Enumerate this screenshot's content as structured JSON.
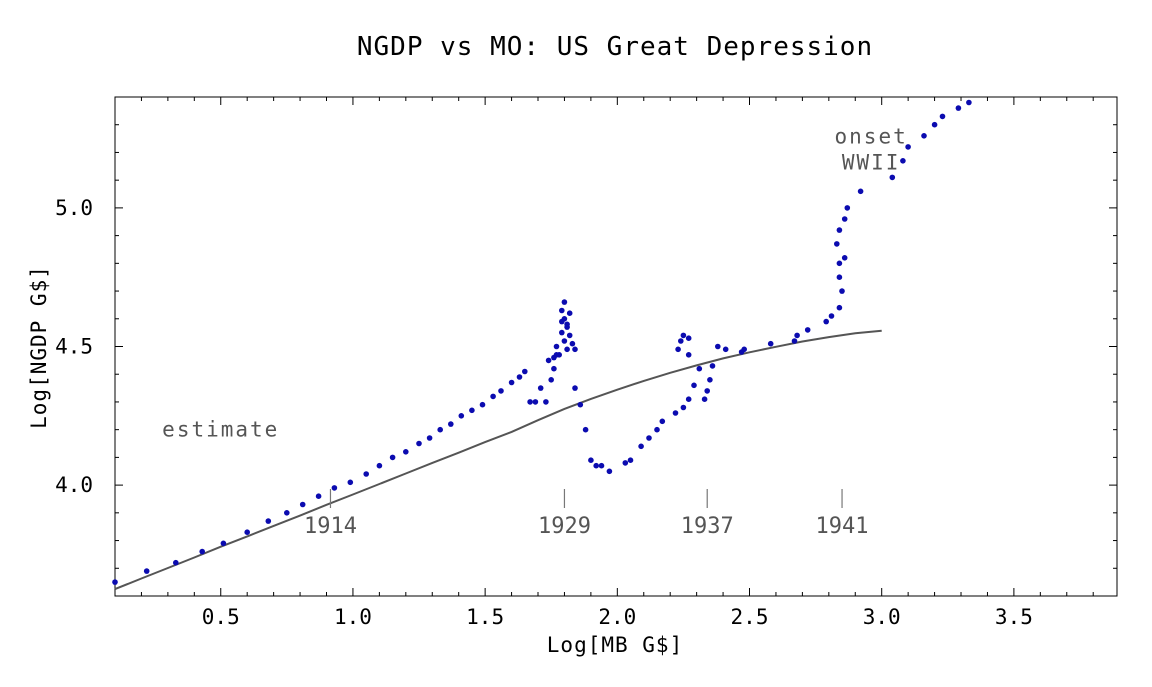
{
  "chart_data": {
    "type": "scatter",
    "title": "NGDP vs MO: US Great Depression",
    "xlabel": "Log[MB G$]",
    "ylabel": "Log[NGDP G$]",
    "xlim": [
      0.1,
      3.89
    ],
    "ylim": [
      3.6,
      5.4
    ],
    "xticks": [
      0.5,
      1.0,
      1.5,
      2.0,
      2.5,
      3.0,
      3.5
    ],
    "yticks": [
      4.0,
      4.5,
      5.0
    ],
    "xtick_labels": [
      "0.5",
      "1.0",
      "1.5",
      "2.0",
      "2.5",
      "3.0",
      "3.5"
    ],
    "ytick_labels": [
      "4.0",
      "4.5",
      "5.0"
    ],
    "grid": false,
    "series": [
      {
        "values": [
          [
            0.1,
            3.65
          ],
          [
            0.22,
            3.69
          ],
          [
            0.33,
            3.72
          ],
          [
            0.43,
            3.76
          ],
          [
            0.51,
            3.79
          ],
          [
            0.6,
            3.83
          ],
          [
            0.68,
            3.87
          ],
          [
            0.75,
            3.9
          ],
          [
            0.81,
            3.93
          ],
          [
            0.87,
            3.96
          ],
          [
            0.93,
            3.99
          ],
          [
            0.99,
            4.01
          ],
          [
            1.05,
            4.04
          ],
          [
            1.1,
            4.07
          ],
          [
            1.15,
            4.1
          ],
          [
            1.2,
            4.12
          ],
          [
            1.25,
            4.15
          ],
          [
            1.29,
            4.17
          ],
          [
            1.33,
            4.2
          ],
          [
            1.37,
            4.22
          ],
          [
            1.41,
            4.25
          ],
          [
            1.45,
            4.27
          ],
          [
            1.49,
            4.29
          ],
          [
            1.53,
            4.32
          ],
          [
            1.56,
            4.34
          ],
          [
            1.6,
            4.37
          ],
          [
            1.63,
            4.39
          ],
          [
            1.65,
            4.41
          ],
          [
            1.67,
            4.3
          ],
          [
            1.69,
            4.3
          ],
          [
            1.71,
            4.35
          ],
          [
            1.73,
            4.3
          ],
          [
            1.75,
            4.38
          ],
          [
            1.74,
            4.45
          ],
          [
            1.76,
            4.42
          ],
          [
            1.76,
            4.46
          ],
          [
            1.77,
            4.47
          ],
          [
            1.77,
            4.5
          ],
          [
            1.78,
            4.47
          ],
          [
            1.79,
            4.55
          ],
          [
            1.79,
            4.59
          ],
          [
            1.79,
            4.63
          ],
          [
            1.8,
            4.66
          ],
          [
            1.8,
            4.6
          ],
          [
            1.81,
            4.57
          ],
          [
            1.8,
            4.52
          ],
          [
            1.81,
            4.49
          ],
          [
            1.82,
            4.54
          ],
          [
            1.81,
            4.58
          ],
          [
            1.82,
            4.62
          ],
          [
            1.83,
            4.51
          ],
          [
            1.84,
            4.49
          ],
          [
            1.84,
            4.35
          ],
          [
            1.86,
            4.29
          ],
          [
            1.88,
            4.2
          ],
          [
            1.9,
            4.09
          ],
          [
            1.92,
            4.07
          ],
          [
            1.94,
            4.07
          ],
          [
            1.97,
            4.05
          ],
          [
            2.03,
            4.08
          ],
          [
            2.05,
            4.09
          ],
          [
            2.09,
            4.14
          ],
          [
            2.12,
            4.17
          ],
          [
            2.15,
            4.2
          ],
          [
            2.17,
            4.23
          ],
          [
            2.22,
            4.26
          ],
          [
            2.25,
            4.28
          ],
          [
            2.27,
            4.31
          ],
          [
            2.29,
            4.36
          ],
          [
            2.31,
            4.42
          ],
          [
            2.23,
            4.49
          ],
          [
            2.24,
            4.52
          ],
          [
            2.25,
            4.54
          ],
          [
            2.27,
            4.53
          ],
          [
            2.27,
            4.47
          ],
          [
            2.33,
            4.31
          ],
          [
            2.34,
            4.34
          ],
          [
            2.35,
            4.38
          ],
          [
            2.36,
            4.43
          ],
          [
            2.38,
            4.5
          ],
          [
            2.41,
            4.49
          ],
          [
            2.47,
            4.48
          ],
          [
            2.48,
            4.49
          ],
          [
            2.58,
            4.51
          ],
          [
            2.67,
            4.52
          ],
          [
            2.68,
            4.54
          ],
          [
            2.72,
            4.56
          ],
          [
            2.79,
            4.59
          ],
          [
            2.81,
            4.61
          ],
          [
            2.84,
            4.64
          ],
          [
            2.85,
            4.7
          ],
          [
            2.84,
            4.75
          ],
          [
            2.84,
            4.8
          ],
          [
            2.86,
            4.82
          ],
          [
            2.83,
            4.87
          ],
          [
            2.84,
            4.92
          ],
          [
            2.86,
            4.96
          ],
          [
            2.87,
            5.0
          ],
          [
            2.92,
            5.06
          ],
          [
            3.04,
            5.11
          ],
          [
            3.08,
            5.17
          ],
          [
            3.1,
            5.22
          ],
          [
            3.16,
            5.26
          ],
          [
            3.2,
            5.3
          ],
          [
            3.23,
            5.33
          ],
          [
            3.29,
            5.36
          ],
          [
            3.33,
            5.38
          ]
        ]
      }
    ],
    "fit_curve": {
      "label": "estimate",
      "points": [
        [
          0.1,
          3.625
        ],
        [
          0.2,
          3.663
        ],
        [
          0.3,
          3.701
        ],
        [
          0.4,
          3.739
        ],
        [
          0.5,
          3.778
        ],
        [
          0.6,
          3.815
        ],
        [
          0.7,
          3.853
        ],
        [
          0.8,
          3.89
        ],
        [
          0.9,
          3.929
        ],
        [
          1.0,
          3.966
        ],
        [
          1.1,
          4.004
        ],
        [
          1.2,
          4.042
        ],
        [
          1.3,
          4.08
        ],
        [
          1.4,
          4.117
        ],
        [
          1.5,
          4.155
        ],
        [
          1.6,
          4.192
        ],
        [
          1.7,
          4.234
        ],
        [
          1.8,
          4.275
        ],
        [
          1.9,
          4.311
        ],
        [
          2.0,
          4.344
        ],
        [
          2.1,
          4.376
        ],
        [
          2.2,
          4.405
        ],
        [
          2.3,
          4.432
        ],
        [
          2.4,
          4.457
        ],
        [
          2.5,
          4.479
        ],
        [
          2.6,
          4.499
        ],
        [
          2.7,
          4.518
        ],
        [
          2.8,
          4.534
        ],
        [
          2.9,
          4.548
        ],
        [
          3.0,
          4.557
        ]
      ]
    },
    "annotations": [
      {
        "id": "estimate",
        "lines": [
          "estimate"
        ],
        "x": 0.5,
        "y": 4.2
      },
      {
        "id": "wwii",
        "lines": [
          "onset",
          "WWII"
        ],
        "x": 2.96,
        "y": 5.21
      }
    ],
    "year_markers": [
      {
        "label": "1914",
        "x": 0.915
      },
      {
        "label": "1929",
        "x": 1.8
      },
      {
        "label": "1937",
        "x": 2.34
      },
      {
        "label": "1941",
        "x": 2.85
      }
    ]
  }
}
